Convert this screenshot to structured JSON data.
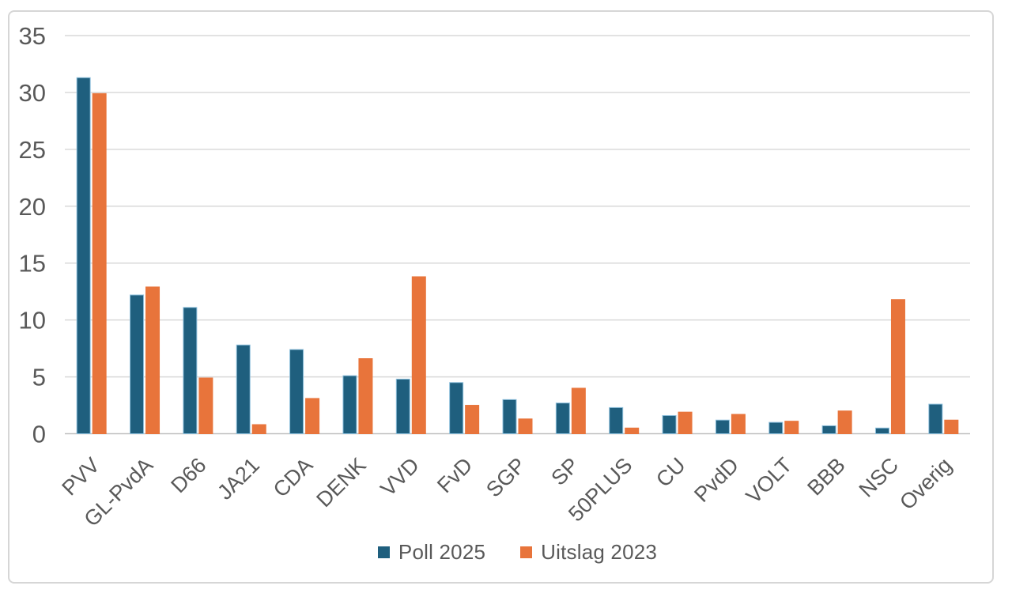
{
  "chart_data": {
    "type": "bar",
    "title": "",
    "xlabel": "",
    "ylabel": "",
    "ylim": [
      0,
      35
    ],
    "yticks": [
      0,
      5,
      10,
      15,
      20,
      25,
      30,
      35
    ],
    "grid": true,
    "legend_position": "bottom",
    "categories": [
      "PVV",
      "GL-PvdA",
      "D66",
      "JA21",
      "CDA",
      "DENK",
      "VVD",
      "FvD",
      "SGP",
      "SP",
      "50PLUS",
      "CU",
      "PvdD",
      "VOLT",
      "BBB",
      "NSC",
      "Overig"
    ],
    "series": [
      {
        "name": "Poll 2025",
        "color": "#1F5F7E",
        "edge_color": "#8FC0DC",
        "values": [
          31.3,
          12.2,
          11.1,
          7.8,
          7.4,
          5.1,
          4.8,
          4.5,
          3.0,
          2.7,
          2.3,
          1.6,
          1.2,
          1.0,
          0.7,
          0.5,
          2.6
        ]
      },
      {
        "name": "Uitslag 2023",
        "color": "#E8743B",
        "edge_color": "#E8743B",
        "values": [
          29.9,
          12.9,
          4.9,
          0.8,
          3.1,
          6.6,
          13.8,
          2.5,
          1.3,
          4.0,
          0.5,
          1.9,
          1.7,
          1.1,
          2.0,
          11.8,
          1.2
        ]
      }
    ],
    "colors": {
      "gridline": "#D9D9D9",
      "axis_line": "#BFBFBF",
      "tick_label": "#595959",
      "category_label": "#595959",
      "background": "#FFFFFF",
      "frame_border": "#D6D6D6"
    }
  }
}
